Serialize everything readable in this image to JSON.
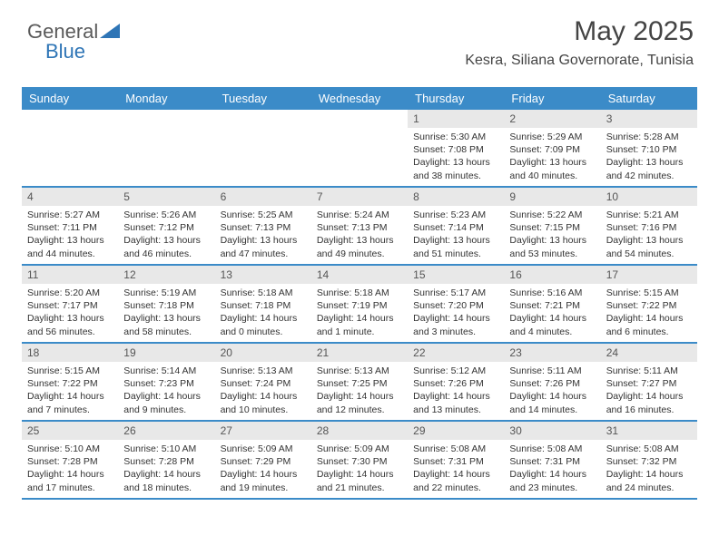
{
  "logo": {
    "part1": "General",
    "part2": "Blue"
  },
  "title": "May 2025",
  "location": "Kesra, Siliana Governorate, Tunisia",
  "colors": {
    "header_bg": "#3b8bc8",
    "header_fg": "#ffffff",
    "daynum_bg": "#e8e8e8",
    "text": "#333333",
    "border": "#3b8bc8",
    "background": "#ffffff"
  },
  "day_labels": [
    "Sunday",
    "Monday",
    "Tuesday",
    "Wednesday",
    "Thursday",
    "Friday",
    "Saturday"
  ],
  "weeks": [
    [
      {
        "empty": true
      },
      {
        "empty": true
      },
      {
        "empty": true
      },
      {
        "empty": true
      },
      {
        "num": "1",
        "sunrise": "Sunrise: 5:30 AM",
        "sunset": "Sunset: 7:08 PM",
        "daylight": "Daylight: 13 hours and 38 minutes."
      },
      {
        "num": "2",
        "sunrise": "Sunrise: 5:29 AM",
        "sunset": "Sunset: 7:09 PM",
        "daylight": "Daylight: 13 hours and 40 minutes."
      },
      {
        "num": "3",
        "sunrise": "Sunrise: 5:28 AM",
        "sunset": "Sunset: 7:10 PM",
        "daylight": "Daylight: 13 hours and 42 minutes."
      }
    ],
    [
      {
        "num": "4",
        "sunrise": "Sunrise: 5:27 AM",
        "sunset": "Sunset: 7:11 PM",
        "daylight": "Daylight: 13 hours and 44 minutes."
      },
      {
        "num": "5",
        "sunrise": "Sunrise: 5:26 AM",
        "sunset": "Sunset: 7:12 PM",
        "daylight": "Daylight: 13 hours and 46 minutes."
      },
      {
        "num": "6",
        "sunrise": "Sunrise: 5:25 AM",
        "sunset": "Sunset: 7:13 PM",
        "daylight": "Daylight: 13 hours and 47 minutes."
      },
      {
        "num": "7",
        "sunrise": "Sunrise: 5:24 AM",
        "sunset": "Sunset: 7:13 PM",
        "daylight": "Daylight: 13 hours and 49 minutes."
      },
      {
        "num": "8",
        "sunrise": "Sunrise: 5:23 AM",
        "sunset": "Sunset: 7:14 PM",
        "daylight": "Daylight: 13 hours and 51 minutes."
      },
      {
        "num": "9",
        "sunrise": "Sunrise: 5:22 AM",
        "sunset": "Sunset: 7:15 PM",
        "daylight": "Daylight: 13 hours and 53 minutes."
      },
      {
        "num": "10",
        "sunrise": "Sunrise: 5:21 AM",
        "sunset": "Sunset: 7:16 PM",
        "daylight": "Daylight: 13 hours and 54 minutes."
      }
    ],
    [
      {
        "num": "11",
        "sunrise": "Sunrise: 5:20 AM",
        "sunset": "Sunset: 7:17 PM",
        "daylight": "Daylight: 13 hours and 56 minutes."
      },
      {
        "num": "12",
        "sunrise": "Sunrise: 5:19 AM",
        "sunset": "Sunset: 7:18 PM",
        "daylight": "Daylight: 13 hours and 58 minutes."
      },
      {
        "num": "13",
        "sunrise": "Sunrise: 5:18 AM",
        "sunset": "Sunset: 7:18 PM",
        "daylight": "Daylight: 14 hours and 0 minutes."
      },
      {
        "num": "14",
        "sunrise": "Sunrise: 5:18 AM",
        "sunset": "Sunset: 7:19 PM",
        "daylight": "Daylight: 14 hours and 1 minute."
      },
      {
        "num": "15",
        "sunrise": "Sunrise: 5:17 AM",
        "sunset": "Sunset: 7:20 PM",
        "daylight": "Daylight: 14 hours and 3 minutes."
      },
      {
        "num": "16",
        "sunrise": "Sunrise: 5:16 AM",
        "sunset": "Sunset: 7:21 PM",
        "daylight": "Daylight: 14 hours and 4 minutes."
      },
      {
        "num": "17",
        "sunrise": "Sunrise: 5:15 AM",
        "sunset": "Sunset: 7:22 PM",
        "daylight": "Daylight: 14 hours and 6 minutes."
      }
    ],
    [
      {
        "num": "18",
        "sunrise": "Sunrise: 5:15 AM",
        "sunset": "Sunset: 7:22 PM",
        "daylight": "Daylight: 14 hours and 7 minutes."
      },
      {
        "num": "19",
        "sunrise": "Sunrise: 5:14 AM",
        "sunset": "Sunset: 7:23 PM",
        "daylight": "Daylight: 14 hours and 9 minutes."
      },
      {
        "num": "20",
        "sunrise": "Sunrise: 5:13 AM",
        "sunset": "Sunset: 7:24 PM",
        "daylight": "Daylight: 14 hours and 10 minutes."
      },
      {
        "num": "21",
        "sunrise": "Sunrise: 5:13 AM",
        "sunset": "Sunset: 7:25 PM",
        "daylight": "Daylight: 14 hours and 12 minutes."
      },
      {
        "num": "22",
        "sunrise": "Sunrise: 5:12 AM",
        "sunset": "Sunset: 7:26 PM",
        "daylight": "Daylight: 14 hours and 13 minutes."
      },
      {
        "num": "23",
        "sunrise": "Sunrise: 5:11 AM",
        "sunset": "Sunset: 7:26 PM",
        "daylight": "Daylight: 14 hours and 14 minutes."
      },
      {
        "num": "24",
        "sunrise": "Sunrise: 5:11 AM",
        "sunset": "Sunset: 7:27 PM",
        "daylight": "Daylight: 14 hours and 16 minutes."
      }
    ],
    [
      {
        "num": "25",
        "sunrise": "Sunrise: 5:10 AM",
        "sunset": "Sunset: 7:28 PM",
        "daylight": "Daylight: 14 hours and 17 minutes."
      },
      {
        "num": "26",
        "sunrise": "Sunrise: 5:10 AM",
        "sunset": "Sunset: 7:28 PM",
        "daylight": "Daylight: 14 hours and 18 minutes."
      },
      {
        "num": "27",
        "sunrise": "Sunrise: 5:09 AM",
        "sunset": "Sunset: 7:29 PM",
        "daylight": "Daylight: 14 hours and 19 minutes."
      },
      {
        "num": "28",
        "sunrise": "Sunrise: 5:09 AM",
        "sunset": "Sunset: 7:30 PM",
        "daylight": "Daylight: 14 hours and 21 minutes."
      },
      {
        "num": "29",
        "sunrise": "Sunrise: 5:08 AM",
        "sunset": "Sunset: 7:31 PM",
        "daylight": "Daylight: 14 hours and 22 minutes."
      },
      {
        "num": "30",
        "sunrise": "Sunrise: 5:08 AM",
        "sunset": "Sunset: 7:31 PM",
        "daylight": "Daylight: 14 hours and 23 minutes."
      },
      {
        "num": "31",
        "sunrise": "Sunrise: 5:08 AM",
        "sunset": "Sunset: 7:32 PM",
        "daylight": "Daylight: 14 hours and 24 minutes."
      }
    ]
  ]
}
